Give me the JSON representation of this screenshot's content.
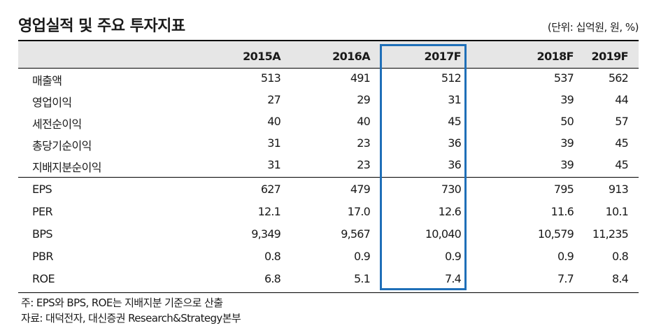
{
  "title": "영업실적 및 주요 투자지표",
  "unit": "(단위: 십억원, 원, %)",
  "columns": [
    "2015A",
    "2016A",
    "2017F",
    "2018F",
    "2019F"
  ],
  "rows": [
    {
      "label": "매출액",
      "values": [
        "513",
        "491",
        "512",
        "537",
        "562"
      ]
    },
    {
      "label": "영업이익",
      "values": [
        "27",
        "29",
        "31",
        "39",
        "44"
      ]
    },
    {
      "label": "세전순이익",
      "values": [
        "40",
        "40",
        "45",
        "50",
        "57"
      ]
    },
    {
      "label": "총당기순이익",
      "values": [
        "31",
        "23",
        "36",
        "39",
        "45"
      ]
    },
    {
      "label": "지배지분순이익",
      "values": [
        "31",
        "23",
        "36",
        "39",
        "45"
      ]
    },
    {
      "label": "EPS",
      "values": [
        "627",
        "479",
        "730",
        "795",
        "913"
      ]
    },
    {
      "label": "PER",
      "values": [
        "12.1",
        "17.0",
        "12.6",
        "11.6",
        "10.1"
      ]
    },
    {
      "label": "BPS",
      "values": [
        "9,349",
        "9,567",
        "10,040",
        "10,579",
        "11,235"
      ]
    },
    {
      "label": "PBR",
      "values": [
        "0.8",
        "0.9",
        "0.9",
        "0.9",
        "0.8"
      ]
    },
    {
      "label": "ROE",
      "values": [
        "6.8",
        "5.1",
        "7.4",
        "7.7",
        "8.4"
      ]
    }
  ],
  "notes": {
    "note": "주: EPS와 BPS, ROE는 지배지분 기준으로 산출",
    "source": "자료: 대덕전자, 대신증권 Research&Strategy본부"
  },
  "colors": {
    "highlight": "#1f6fb8",
    "header_bg": "#e6e6e6"
  }
}
